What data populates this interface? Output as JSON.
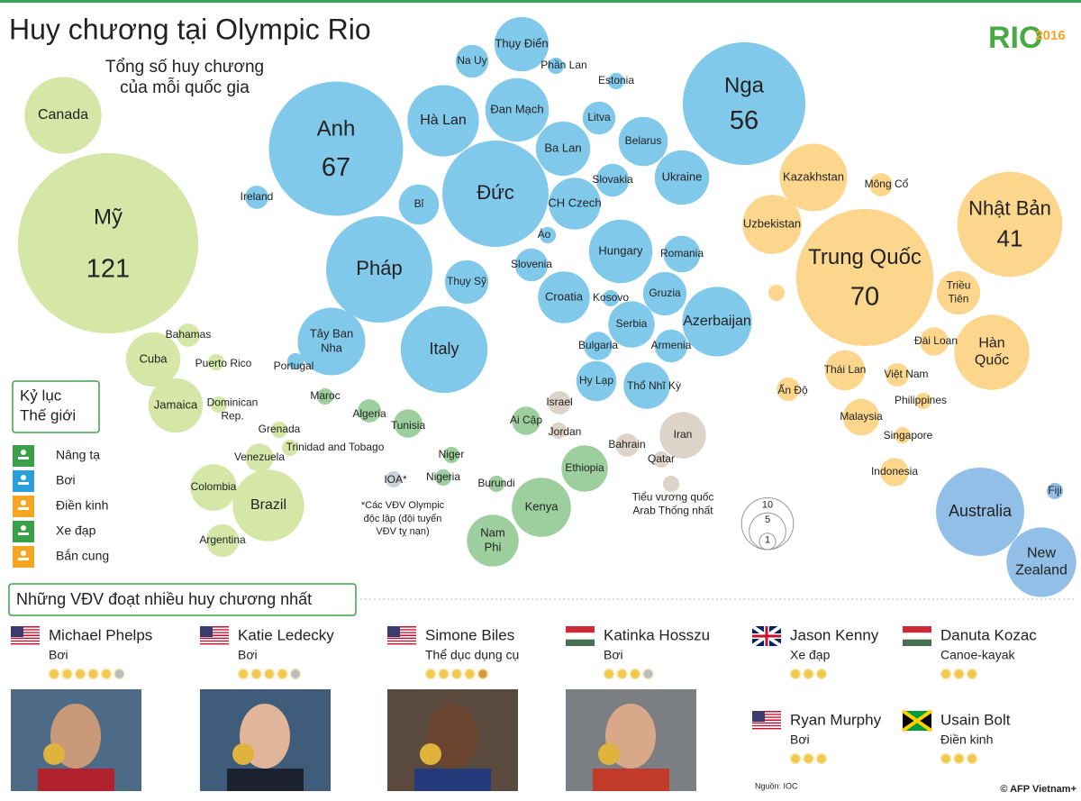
{
  "header": {
    "title": "Huy chương tại Olympic Rio",
    "subtitle": [
      "Tổng số huy chương",
      "của mỗi quốc gia"
    ],
    "logo": {
      "text": "RIO",
      "year": "2016"
    }
  },
  "chart_data": {
    "type": "bubble",
    "bubbles": [
      {
        "label": "Canada",
        "value": 22,
        "color": "#d5e6a6"
      },
      {
        "label": "Mỹ",
        "value": 121,
        "color": "#d5e6a6",
        "show_value": true
      },
      {
        "label": "Bahamas",
        "value": 2,
        "color": "#d5e6a6"
      },
      {
        "label": "Cuba",
        "value": 11,
        "color": "#d5e6a6"
      },
      {
        "label": "Puerto Rico",
        "value": 1,
        "color": "#d5e6a6"
      },
      {
        "label": "Jamaica",
        "value": 11,
        "color": "#d5e6a6"
      },
      {
        "label": [
          "Dominican",
          "Rep."
        ],
        "value": 1,
        "color": "#d5e6a6"
      },
      {
        "label": "Grenada",
        "value": 1,
        "color": "#d5e6a6"
      },
      {
        "label": "Trinidad and Tobago",
        "value": 1,
        "color": "#d5e6a6"
      },
      {
        "label": "Venezuela",
        "value": 3,
        "color": "#d5e6a6"
      },
      {
        "label": "Colombia",
        "value": 8,
        "color": "#d5e6a6"
      },
      {
        "label": "Brazil",
        "value": 19,
        "color": "#d5e6a6"
      },
      {
        "label": "Argentina",
        "value": 4,
        "color": "#d5e6a6"
      },
      {
        "label": "Anh",
        "value": 67,
        "color": "#80c9ea",
        "show_value": true
      },
      {
        "label": "Nga",
        "value": 56,
        "color": "#80c9ea",
        "show_value": true
      },
      {
        "label": "Thụy Điển",
        "value": 11,
        "color": "#80c9ea"
      },
      {
        "label": "Na Uy",
        "value": 4,
        "color": "#80c9ea"
      },
      {
        "label": "Phần Lan",
        "value": 1,
        "color": "#80c9ea"
      },
      {
        "label": "Estonia",
        "value": 1,
        "color": "#80c9ea"
      },
      {
        "label": "Hà Lan",
        "value": 19,
        "color": "#80c9ea"
      },
      {
        "label": "Đan Mạch",
        "value": 15,
        "color": "#80c9ea"
      },
      {
        "label": "Litva",
        "value": 4,
        "color": "#80c9ea"
      },
      {
        "label": "Ba Lan",
        "value": 11,
        "color": "#80c9ea"
      },
      {
        "label": "Belarus",
        "value": 9,
        "color": "#80c9ea"
      },
      {
        "label": "Ukraine",
        "value": 11,
        "color": "#80c9ea"
      },
      {
        "label": "Slovakia",
        "value": 4,
        "color": "#80c9ea"
      },
      {
        "label": "Đức",
        "value": 42,
        "color": "#80c9ea"
      },
      {
        "label": "CH Czech",
        "value": 10,
        "color": "#80c9ea"
      },
      {
        "label": "Ireland",
        "value": 2,
        "color": "#80c9ea"
      },
      {
        "label": "Bỉ",
        "value": 6,
        "color": "#80c9ea"
      },
      {
        "label": "Áo",
        "value": 1,
        "color": "#80c9ea"
      },
      {
        "label": "Pháp",
        "value": 42,
        "color": "#80c9ea"
      },
      {
        "label": "Thụy Sỹ",
        "value": 7,
        "color": "#80c9ea"
      },
      {
        "label": "Slovenia",
        "value": 4,
        "color": "#80c9ea"
      },
      {
        "label": "Hungary",
        "value": 15,
        "color": "#80c9ea"
      },
      {
        "label": "Romania",
        "value": 5,
        "color": "#80c9ea"
      },
      {
        "label": "Croatia",
        "value": 10,
        "color": "#80c9ea"
      },
      {
        "label": "Kosovo",
        "value": 1,
        "color": "#80c9ea"
      },
      {
        "label": "Gruzia",
        "value": 7,
        "color": "#80c9ea"
      },
      {
        "label": "Serbia",
        "value": 8,
        "color": "#80c9ea"
      },
      {
        "label": "Azerbaijan",
        "value": 18,
        "color": "#80c9ea"
      },
      {
        "label": [
          "Tây Ban",
          "Nha"
        ],
        "value": 17,
        "color": "#80c9ea"
      },
      {
        "label": "Portugal",
        "value": 1,
        "color": "#80c9ea"
      },
      {
        "label": "Italy",
        "value": 28,
        "color": "#80c9ea"
      },
      {
        "label": "Bulgaria",
        "value": 3,
        "color": "#80c9ea"
      },
      {
        "label": "Armenia",
        "value": 4,
        "color": "#80c9ea"
      },
      {
        "label": "Hy Lạp",
        "value": 6,
        "color": "#80c9ea"
      },
      {
        "label": "Thổ Nhĩ Kỳ",
        "value": 8,
        "color": "#80c9ea"
      },
      {
        "label": "Maroc",
        "value": 1,
        "color": "#9dcf9e"
      },
      {
        "label": "Algeria",
        "value": 2,
        "color": "#9dcf9e"
      },
      {
        "label": "Tunisia",
        "value": 3,
        "color": "#9dcf9e"
      },
      {
        "label": "Niger",
        "value": 1,
        "color": "#9dcf9e"
      },
      {
        "label": "Nigeria",
        "value": 1,
        "color": "#9dcf9e"
      },
      {
        "label": "Burundi",
        "value": 1,
        "color": "#9dcf9e"
      },
      {
        "label": "Ai Cập",
        "value": 3,
        "color": "#9dcf9e"
      },
      {
        "label": "Ethiopia",
        "value": 8,
        "color": "#9dcf9e"
      },
      {
        "label": "Kenya",
        "value": 13,
        "color": "#9dcf9e"
      },
      {
        "label": [
          "Nam",
          "Phi"
        ],
        "value": 10,
        "color": "#9dcf9e"
      },
      {
        "label": "Israel",
        "value": 2,
        "color": "#ddd3c9"
      },
      {
        "label": "Jordan",
        "value": 1,
        "color": "#ddd3c9"
      },
      {
        "label": "Iran",
        "value": 8,
        "color": "#ddd3c9"
      },
      {
        "label": "Bahrain",
        "value": 2,
        "color": "#ddd3c9"
      },
      {
        "label": "Qatar",
        "value": 1,
        "color": "#ddd3c9"
      },
      {
        "label": [
          "Tiểu vương quốc",
          "Arab  Thống nhất"
        ],
        "value": 1,
        "color": "#ddd3c9"
      },
      {
        "label": "IOA*",
        "value": 1,
        "color": "#c8d3dc"
      },
      {
        "label": "Kazakhstan",
        "value": 17,
        "color": "#fcd68d"
      },
      {
        "label": "Mông Cổ",
        "value": 2,
        "color": "#fcd68d"
      },
      {
        "label": "Uzbekistan",
        "value": 13,
        "color": "#fcd68d"
      },
      {
        "label": "Trung Quốc",
        "value": 70,
        "color": "#fcd68d",
        "show_value": true
      },
      {
        "label": "Nhật Bản",
        "value": 41,
        "color": "#fcd68d",
        "show_value": true
      },
      {
        "label": null,
        "value": 1,
        "color": "#fcd68d"
      },
      {
        "label": [
          "Triều",
          "Tiên"
        ],
        "value": 7,
        "color": "#fcd68d"
      },
      {
        "label": [
          "Hàn",
          "Quốc"
        ],
        "value": 21,
        "color": "#fcd68d"
      },
      {
        "label": "Đài Loan",
        "value": 3,
        "color": "#fcd68d"
      },
      {
        "label": "Thái Lan",
        "value": 6,
        "color": "#fcd68d"
      },
      {
        "label": "Việt Nam",
        "value": 2,
        "color": "#fcd68d"
      },
      {
        "label": "Ấn Độ",
        "value": 2,
        "color": "#fcd68d"
      },
      {
        "label": "Philippines",
        "value": 1,
        "color": "#fcd68d"
      },
      {
        "label": "Malaysia",
        "value": 5,
        "color": "#fcd68d"
      },
      {
        "label": "Singapore",
        "value": 1,
        "color": "#fcd68d"
      },
      {
        "label": "Indonesia",
        "value": 3,
        "color": "#fcd68d"
      },
      {
        "label": "Australia",
        "value": 29,
        "color": "#92bfe7"
      },
      {
        "label": [
          "New",
          "Zealand"
        ],
        "value": 18,
        "color": "#92bfe7"
      },
      {
        "label": "Fiji",
        "value": 1,
        "color": "#92bfe7"
      }
    ],
    "size_legend": [
      10,
      5,
      1
    ],
    "note": [
      "*Các VĐV Olympic",
      "độc lập (đội tuyển",
      "VĐV tỵ nạn)"
    ]
  },
  "legend": {
    "title": [
      "Kỷ lục",
      "Thế giới"
    ],
    "items": [
      {
        "label": "Nâng tạ",
        "color": "#3aa04a"
      },
      {
        "label": "Bơi",
        "color": "#2a9fd8"
      },
      {
        "label": "Điền kinh",
        "color": "#f5a623"
      },
      {
        "label": "Xe đạp",
        "color": "#3aa04a"
      },
      {
        "label": "Bắn cung",
        "color": "#f5a623"
      }
    ]
  },
  "athletes": {
    "title": "Những VĐV đoạt nhiều huy chương nhất",
    "list": [
      {
        "name": "Michael Phelps",
        "sport": "Bơi",
        "flag": "us",
        "gold": 5,
        "silver": 1,
        "bronze": 0
      },
      {
        "name": "Katie Ledecky",
        "sport": "Bơi",
        "flag": "us",
        "gold": 4,
        "silver": 1,
        "bronze": 0
      },
      {
        "name": "Simone Biles",
        "sport": "Thể dục dụng cụ",
        "flag": "us",
        "gold": 4,
        "silver": 0,
        "bronze": 1
      },
      {
        "name": "Katinka Hosszu",
        "sport": "Bơi",
        "flag": "hu",
        "gold": 3,
        "silver": 1,
        "bronze": 0
      },
      {
        "name": "Jason Kenny",
        "sport": "Xe đạp",
        "flag": "gb",
        "gold": 3,
        "silver": 0,
        "bronze": 0
      },
      {
        "name": "Danuta Kozac",
        "sport": "Canoe-kayak",
        "flag": "hu",
        "gold": 3,
        "silver": 0,
        "bronze": 0
      },
      {
        "name": "Ryan Murphy",
        "sport": "Bơi",
        "flag": "us",
        "gold": 3,
        "silver": 0,
        "bronze": 0
      },
      {
        "name": "Usain Bolt",
        "sport": "Điền kinh",
        "flag": "jm",
        "gold": 3,
        "silver": 0,
        "bronze": 0
      }
    ]
  },
  "footer": {
    "source": "Nguồn: IOC",
    "credit": "© AFP Vietnam+"
  }
}
